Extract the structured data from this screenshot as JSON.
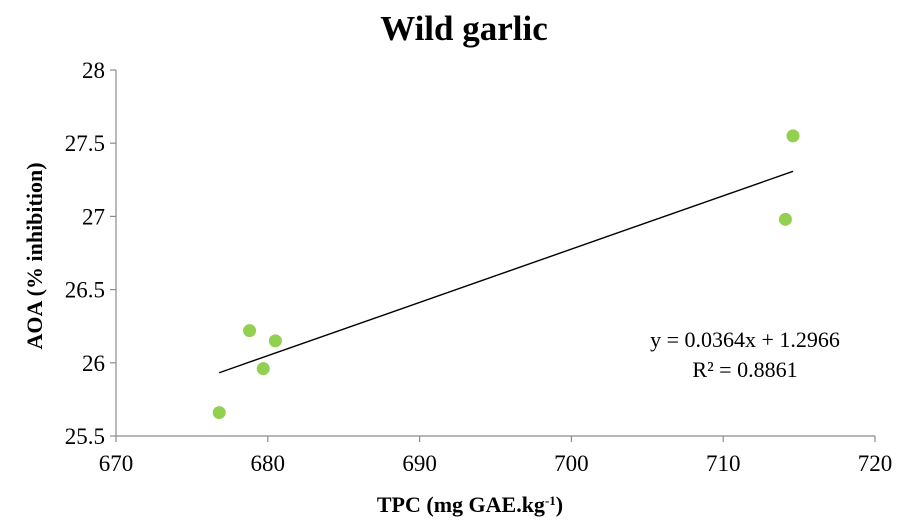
{
  "chart_data": {
    "type": "scatter",
    "title": "Wild garlic",
    "xlabel": {
      "main": "TPC (mg GAE.kg",
      "superscript": "-1",
      "suffix": ")"
    },
    "ylabel": "AOA  (% inhibition)",
    "xlim": [
      670,
      720
    ],
    "ylim": [
      25.5,
      28
    ],
    "xticks": [
      "670",
      "680",
      "690",
      "700",
      "710",
      "720"
    ],
    "yticks": [
      "25.5",
      "26",
      "26.5",
      "27",
      "27.5",
      "28"
    ],
    "grid": false,
    "legend": "none",
    "series": [
      {
        "color": "#92D050",
        "points": [
          {
            "x": 676.8,
            "y": 25.66
          },
          {
            "x": 678.8,
            "y": 26.22
          },
          {
            "x": 679.7,
            "y": 25.96
          },
          {
            "x": 680.5,
            "y": 26.15
          },
          {
            "x": 714.1,
            "y": 26.98
          },
          {
            "x": 714.6,
            "y": 27.55
          }
        ]
      }
    ],
    "trendline": {
      "type": "linear",
      "x_range": [
        676.8,
        714.6
      ],
      "slope": 0.0364,
      "intercept": 1.2966,
      "color": "#000000"
    },
    "annotations": [
      "y = 0.0364x + 1.2966",
      "R² = 0.8861"
    ]
  }
}
